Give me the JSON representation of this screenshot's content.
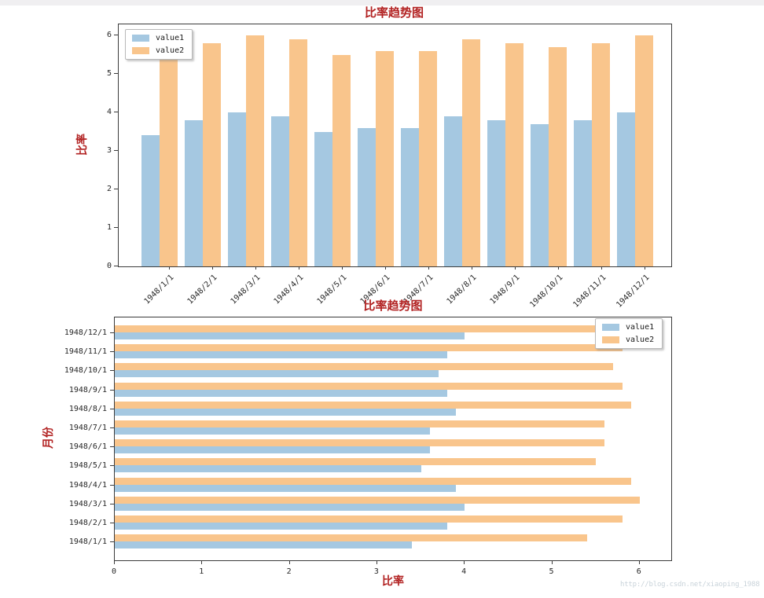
{
  "page": {
    "watermark": "http://blog.csdn.net/xiaoping_1988"
  },
  "colors": {
    "series1": "#a5c8e1",
    "series2": "#f9c58c",
    "title_red": "#b22222",
    "axis": "#3b3b3b",
    "tick_text": "#262626",
    "watermark": "#c9d3da"
  },
  "chart_data": [
    {
      "type": "bar",
      "title": "比率趋势图",
      "xlabel": "",
      "ylabel": "比率",
      "categories": [
        "1948/1/1",
        "1948/2/1",
        "1948/3/1",
        "1948/4/1",
        "1948/5/1",
        "1948/6/1",
        "1948/7/1",
        "1948/8/1",
        "1948/9/1",
        "1948/10/1",
        "1948/11/1",
        "1948/12/1"
      ],
      "series": [
        {
          "name": "value1",
          "color": "#a5c8e1",
          "values": [
            3.4,
            3.8,
            4.0,
            3.9,
            3.5,
            3.6,
            3.6,
            3.9,
            3.8,
            3.7,
            3.8,
            4.0
          ]
        },
        {
          "name": "value2",
          "color": "#f9c58c",
          "values": [
            5.4,
            5.8,
            6.0,
            5.9,
            5.5,
            5.6,
            5.6,
            5.9,
            5.8,
            5.7,
            5.8,
            6.0
          ]
        }
      ],
      "ylim": [
        0,
        6.3
      ],
      "yticks": [
        0,
        1,
        2,
        3,
        4,
        5,
        6
      ],
      "xtick_rotation": 45,
      "legend_position": "top-left",
      "grid": false
    },
    {
      "type": "barh",
      "title": "比率趋势图",
      "xlabel": "比率",
      "ylabel": "月份",
      "categories": [
        "1948/1/1",
        "1948/2/1",
        "1948/3/1",
        "1948/4/1",
        "1948/5/1",
        "1948/6/1",
        "1948/7/1",
        "1948/8/1",
        "1948/9/1",
        "1948/10/1",
        "1948/11/1",
        "1948/12/1"
      ],
      "series": [
        {
          "name": "value1",
          "color": "#a5c8e1",
          "values": [
            3.4,
            3.8,
            4.0,
            3.9,
            3.5,
            3.6,
            3.6,
            3.9,
            3.8,
            3.7,
            3.8,
            4.0
          ]
        },
        {
          "name": "value2",
          "color": "#f9c58c",
          "values": [
            5.4,
            5.8,
            6.0,
            5.9,
            5.5,
            5.6,
            5.6,
            5.9,
            5.8,
            5.7,
            5.8,
            6.0
          ]
        }
      ],
      "xlim": [
        0,
        6.35
      ],
      "xticks": [
        0,
        1,
        2,
        3,
        4,
        5,
        6
      ],
      "legend_position": "top-right",
      "grid": false
    }
  ]
}
